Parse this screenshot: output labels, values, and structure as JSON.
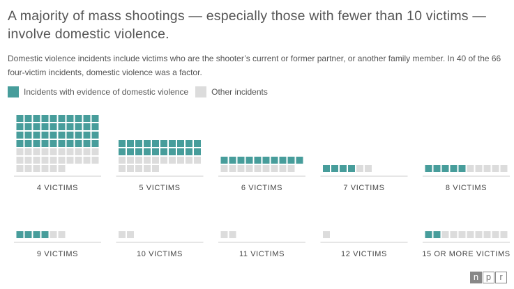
{
  "title": "A majority of mass shootings — especially those with fewer than 10 victims — involve domestic violence.",
  "subtitle": "Domestic violence incidents include victims who are the shooter’s current or former partner, or another family member. In 40 of the 66 four-victim incidents, domestic violence was a factor.",
  "legend": {
    "dv_label": "Incidents with evidence of domestic violence",
    "other_label": "Other incidents"
  },
  "colors": {
    "dv": "#479d9b",
    "other": "#dcdcdc",
    "divider": "#cccccc"
  },
  "logo": {
    "letters": [
      "n",
      "p",
      "r"
    ]
  },
  "chart_data": {
    "type": "waffle",
    "title": "A majority of mass shootings — especially those with fewer than 10 victims — involve domestic violence.",
    "legend_position": "top-left",
    "series": [
      {
        "name": "Incidents with evidence of domestic violence",
        "color": "#479d9b"
      },
      {
        "name": "Other incidents",
        "color": "#dcdcdc"
      }
    ],
    "categories": [
      "4 VICTIMS",
      "5 VICTIMS",
      "6 VICTIMS",
      "7 VICTIMS",
      "8 VICTIMS",
      "9 VICTIMS",
      "10 VICTIMS",
      "11 VICTIMS",
      "12 VICTIMS",
      "15 OR MORE VICTIMS"
    ],
    "dv": [
      40,
      20,
      10,
      4,
      5,
      4,
      0,
      0,
      0,
      2
    ],
    "other": [
      26,
      15,
      9,
      2,
      5,
      2,
      2,
      2,
      1,
      8
    ]
  }
}
